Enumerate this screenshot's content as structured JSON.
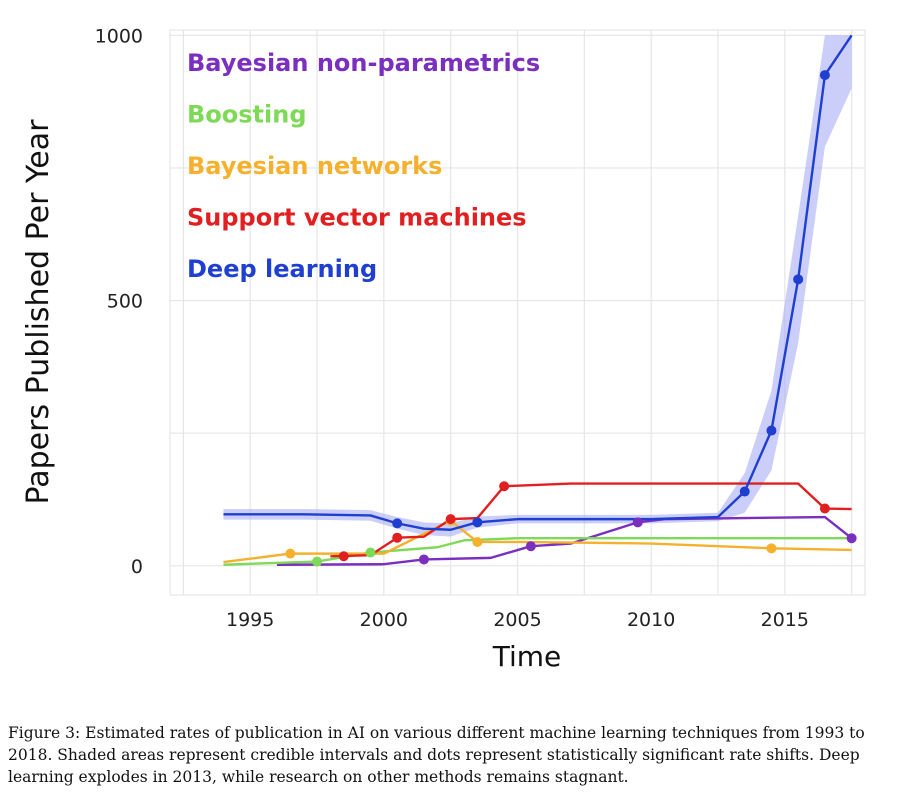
{
  "chart_data": {
    "type": "line",
    "xlabel": "Time",
    "ylabel": "Papers Published Per Year",
    "xlim": [
      1992,
      2018
    ],
    "ylim": [
      -55,
      1010
    ],
    "xticks": [
      1995,
      2000,
      2005,
      2010,
      2015
    ],
    "yticks": [
      0,
      500,
      1000
    ],
    "grid": true,
    "legend_position": "top-left",
    "series": [
      {
        "name": "Bayesian non-parametrics",
        "color": "#7b2fbe",
        "x": [
          1996,
          2000,
          2001.5,
          2004,
          2005.5,
          2007,
          2009.5,
          2010.5,
          2016.5,
          2017.5
        ],
        "y": [
          2,
          3,
          12,
          15,
          37,
          42,
          82,
          88,
          92,
          52
        ],
        "points": [
          [
            2001.5,
            12
          ],
          [
            2005.5,
            37
          ],
          [
            2009.5,
            82
          ],
          [
            2017.5,
            52
          ]
        ]
      },
      {
        "name": "Boosting",
        "color": "#7ed957",
        "x": [
          1994,
          1997.5,
          1999.5,
          2002,
          2003,
          2005,
          2017.5
        ],
        "y": [
          2,
          8,
          25,
          35,
          48,
          52,
          52
        ],
        "points": [
          [
            1997.5,
            8
          ],
          [
            1999.5,
            25
          ]
        ]
      },
      {
        "name": "Bayesian networks",
        "color": "#f5b02e",
        "x": [
          1994,
          1996.5,
          2000,
          2002.5,
          2003.5,
          2005,
          2010,
          2014.5,
          2017.5
        ],
        "y": [
          7,
          23,
          23,
          85,
          45,
          45,
          42,
          33,
          30
        ],
        "points": [
          [
            1996.5,
            23
          ],
          [
            2002.5,
            85
          ],
          [
            2003.5,
            45
          ],
          [
            2014.5,
            33
          ]
        ]
      },
      {
        "name": "Support vector machines",
        "color": "#e02020",
        "x": [
          1998,
          1999.5,
          2000.5,
          2001.5,
          2002.5,
          2003.5,
          2004.5,
          2007,
          2015.5,
          2016.5,
          2017.5
        ],
        "y": [
          18,
          20,
          53,
          55,
          88,
          90,
          150,
          155,
          155,
          108,
          107
        ],
        "points": [
          [
            1998.5,
            18
          ],
          [
            2000.5,
            53
          ],
          [
            2002.5,
            88
          ],
          [
            2004.5,
            150
          ],
          [
            2016.5,
            108
          ]
        ]
      },
      {
        "name": "Deep learning",
        "color": "#1f3fd0",
        "x": [
          1994,
          1997,
          1999.5,
          2000.5,
          2001.5,
          2002.5,
          2003.5,
          2005,
          2010,
          2012.5,
          2013.5,
          2014.5,
          2015.5,
          2016.5,
          2017.5
        ],
        "y": [
          97,
          97,
          95,
          80,
          70,
          68,
          82,
          88,
          88,
          92,
          140,
          255,
          540,
          925,
          1000
        ],
        "points": [
          [
            2000.5,
            80
          ],
          [
            2003.5,
            82
          ],
          [
            2013.5,
            140
          ],
          [
            2014.5,
            255
          ],
          [
            2015.5,
            540
          ],
          [
            2016.5,
            925
          ]
        ],
        "band_lower": [
          87,
          87,
          85,
          70,
          58,
          55,
          72,
          80,
          80,
          84,
          100,
          180,
          420,
          790,
          900
        ],
        "band_upper": [
          107,
          107,
          105,
          92,
          82,
          80,
          93,
          96,
          96,
          100,
          175,
          330,
          660,
          1000,
          1000
        ],
        "band_color": "#a9adf5"
      }
    ]
  },
  "caption": "Figure 3: Estimated rates of publication in AI on various different machine learning techniques from 1993 to 2018. Shaded areas represent credible intervals and dots represent statistically significant rate shifts. Deep learning explodes in 2013, while research on other methods remains stagnant."
}
